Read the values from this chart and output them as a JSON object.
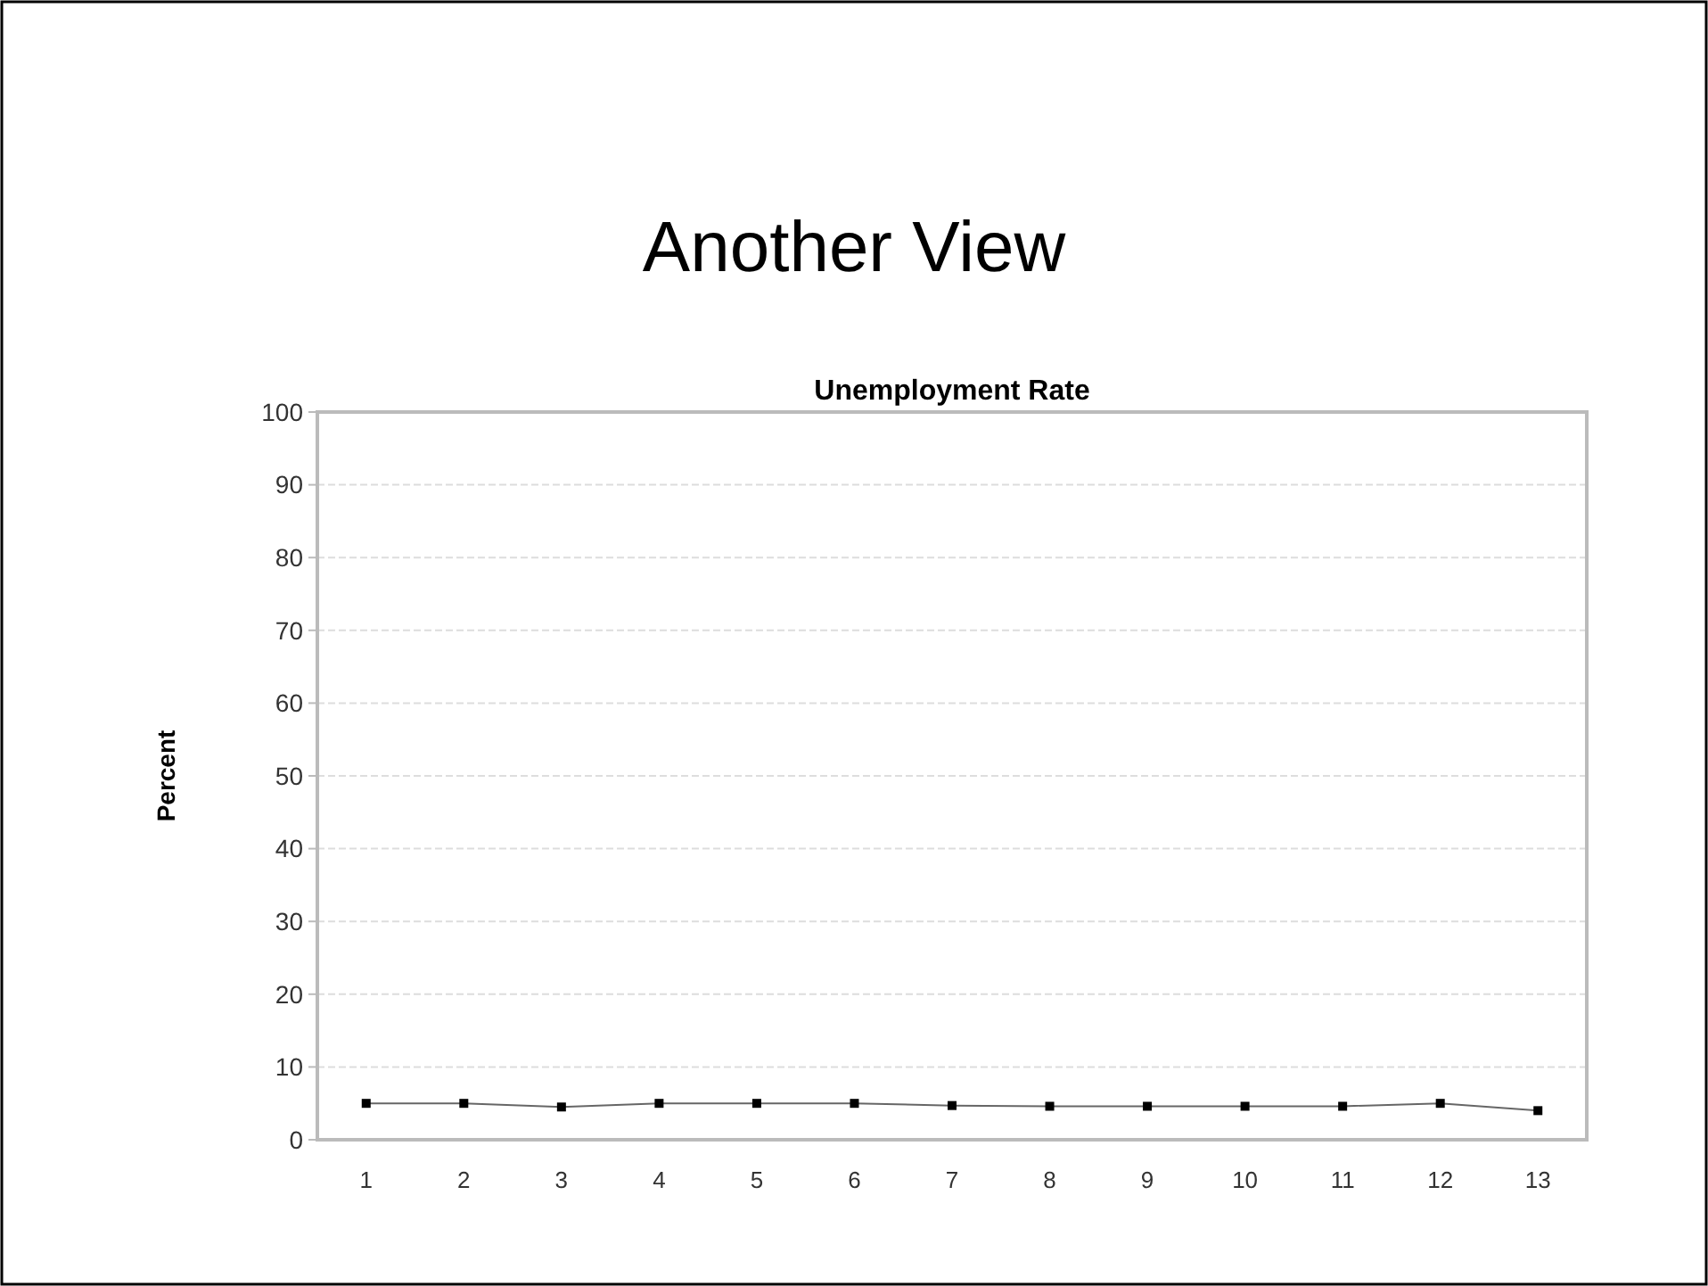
{
  "chart_data": {
    "type": "line",
    "title": "Another View",
    "subtitle": "Unemployment Rate",
    "ylabel": "Percent",
    "x": [
      1,
      2,
      3,
      4,
      5,
      6,
      7,
      8,
      9,
      10,
      11,
      12,
      13
    ],
    "xlim": [
      0.5,
      13.5
    ],
    "xticks": [
      1,
      2,
      3,
      4,
      5,
      6,
      7,
      8,
      9,
      10,
      11,
      12,
      13
    ],
    "series": [
      {
        "color": "#000000",
        "values": [
          5,
          5,
          4.5,
          5,
          5,
          5,
          4.7,
          4.6,
          4.6,
          4.6,
          4.6,
          5,
          4
        ]
      }
    ],
    "ylim": [
      0,
      100
    ],
    "yticks": [
      0,
      10,
      20,
      30,
      40,
      50,
      60,
      70,
      80,
      90,
      100
    ],
    "grid": "y",
    "marker": "square"
  }
}
